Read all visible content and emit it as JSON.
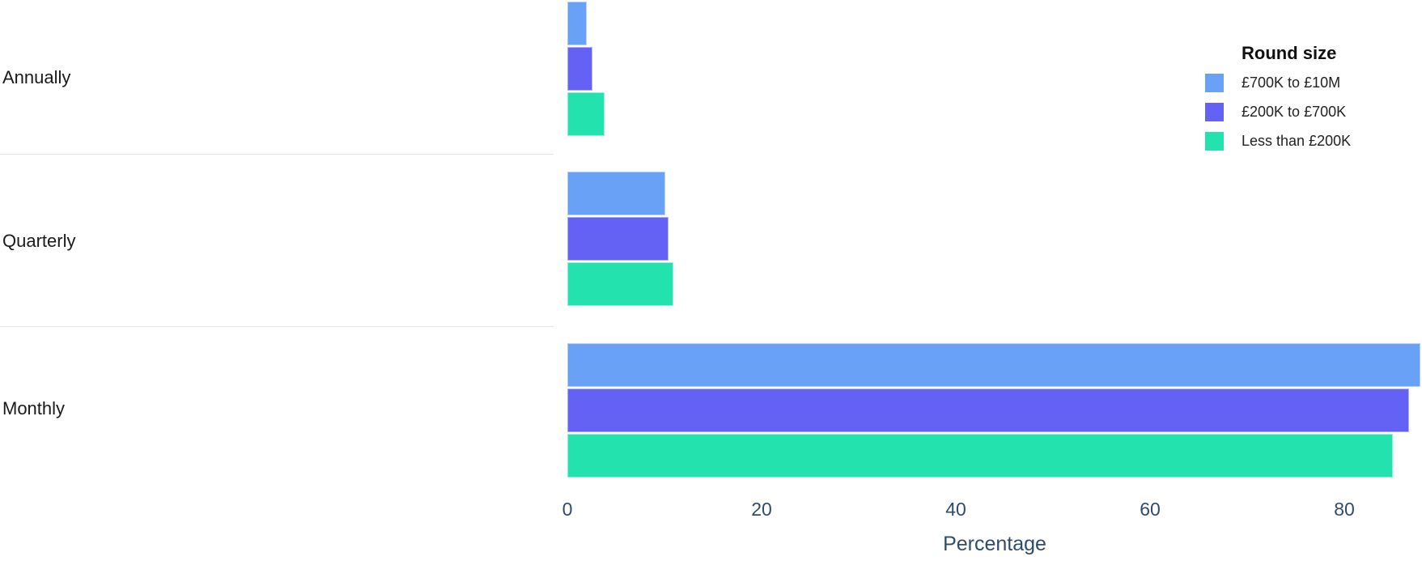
{
  "chart_data": {
    "type": "bar",
    "orientation": "horizontal",
    "title": "",
    "categories": [
      "Annually",
      "Quarterly",
      "Monthly"
    ],
    "series": [
      {
        "name": "£700K to £10M",
        "color": "#68A1F5",
        "values": [
          2.0,
          10.1,
          87.8
        ]
      },
      {
        "name": "£200K to £700K",
        "color": "#6362F5",
        "values": [
          2.6,
          10.4,
          86.7
        ]
      },
      {
        "name": "Less than £200K",
        "color": "#24E2AD",
        "values": [
          3.8,
          10.9,
          85.0
        ]
      }
    ],
    "xlabel": "Percentage",
    "x_ticks": [
      "0",
      "20",
      "40",
      "60",
      "80"
    ],
    "x_tick_values": [
      0,
      20,
      40,
      60,
      80
    ],
    "xlim": [
      0,
      88
    ],
    "legend_title": "Round size",
    "legend_position": "top-right",
    "grid": false,
    "colors": {
      "axis_text": "#2F4B6E",
      "category_text": "#1A1A1A",
      "divider": "#E4E4E4",
      "background": "#FFFFFF"
    }
  }
}
